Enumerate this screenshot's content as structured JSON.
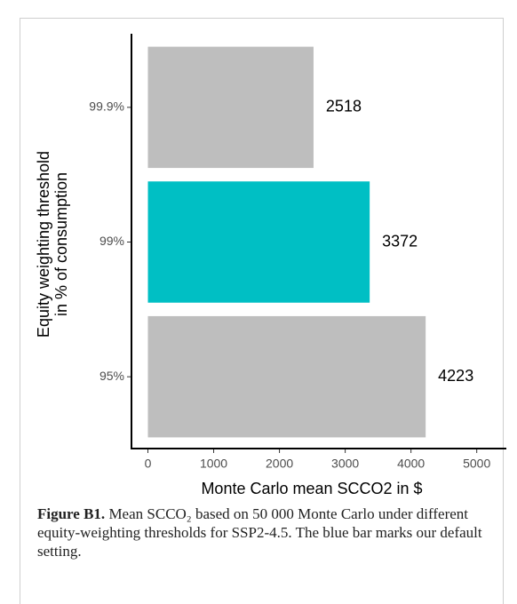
{
  "chart_data": {
    "type": "barh",
    "categories": [
      "99.9%",
      "99%",
      "95%"
    ],
    "values": [
      2518,
      3372,
      4223
    ],
    "colors": [
      "#bebebe",
      "#00bfc4",
      "#bebebe"
    ],
    "xlabel": "Monte Carlo mean SCCO2 in $",
    "ylabel": [
      "Equity weighting threshold",
      "in % of consumption"
    ],
    "xlim": [
      -250,
      5450
    ],
    "xticks": [
      0,
      1000,
      2000,
      3000,
      4000,
      5000
    ],
    "grid": false
  },
  "caption": {
    "label": "Figure B1.",
    "text": "Mean SCCO₂ based on 50 000 Monte Carlo under different equity-weighting thresholds for SSP2-4.5. The blue bar marks our default setting."
  }
}
